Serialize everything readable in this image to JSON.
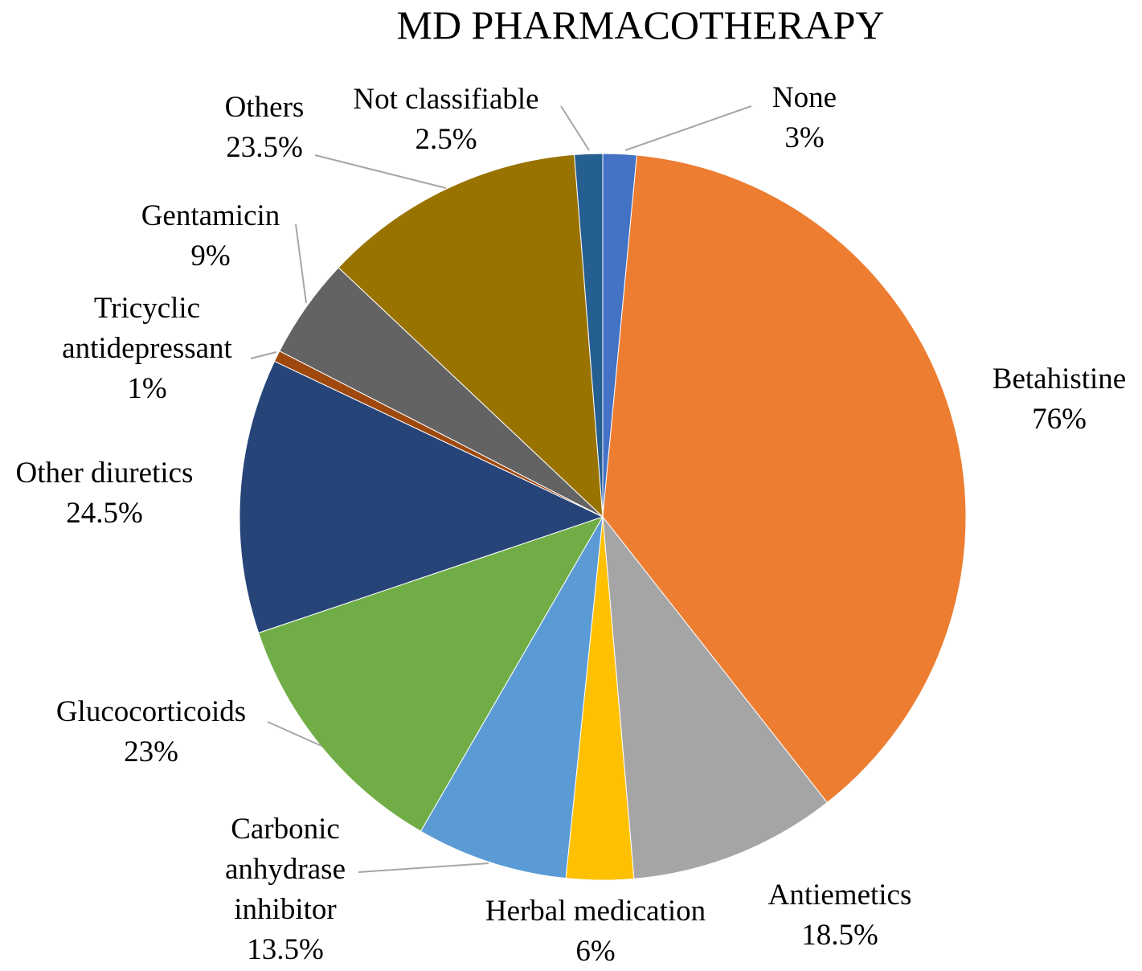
{
  "chart_data": {
    "type": "pie",
    "title": "MD PHARMACOTHERAPY",
    "slices": [
      {
        "name": "None",
        "label_lines": [
          "None"
        ],
        "value": 3,
        "pct_label": "3%",
        "color": "#4472c4"
      },
      {
        "name": "Betahistine",
        "label_lines": [
          "Betahistine"
        ],
        "value": 76,
        "pct_label": "76%",
        "color": "#ed7d31"
      },
      {
        "name": "Antiemetics",
        "label_lines": [
          "Antiemetics"
        ],
        "value": 18.5,
        "pct_label": "18.5%",
        "color": "#a5a5a5"
      },
      {
        "name": "Herbal medication",
        "label_lines": [
          "Herbal medication"
        ],
        "value": 6,
        "pct_label": "6%",
        "color": "#ffc000"
      },
      {
        "name": "Carbonic anhydrase inhibitor",
        "label_lines": [
          "Carbonic",
          "anhydrase",
          "inhibitor"
        ],
        "value": 13.5,
        "pct_label": "13.5%",
        "color": "#5b9bd5"
      },
      {
        "name": "Glucocorticoids",
        "label_lines": [
          "Glucocorticoids"
        ],
        "value": 23,
        "pct_label": "23%",
        "color": "#70ad47"
      },
      {
        "name": "Other diuretics",
        "label_lines": [
          "Other diuretics"
        ],
        "value": 24.5,
        "pct_label": "24.5%",
        "color": "#264478"
      },
      {
        "name": "Tricyclic antidepressant",
        "label_lines": [
          "Tricyclic",
          "antidepressant"
        ],
        "value": 1,
        "pct_label": "1%",
        "color": "#9e480e"
      },
      {
        "name": "Gentamicin",
        "label_lines": [
          "Gentamicin"
        ],
        "value": 9,
        "pct_label": "9%",
        "color": "#636363"
      },
      {
        "name": "Others",
        "label_lines": [
          "Others"
        ],
        "value": 23.5,
        "pct_label": "23.5%",
        "color": "#997300"
      },
      {
        "name": "Not classifiable",
        "label_lines": [
          "Not classifiable"
        ],
        "value": 2.5,
        "pct_label": "2.5%",
        "color": "#255e91"
      }
    ]
  }
}
